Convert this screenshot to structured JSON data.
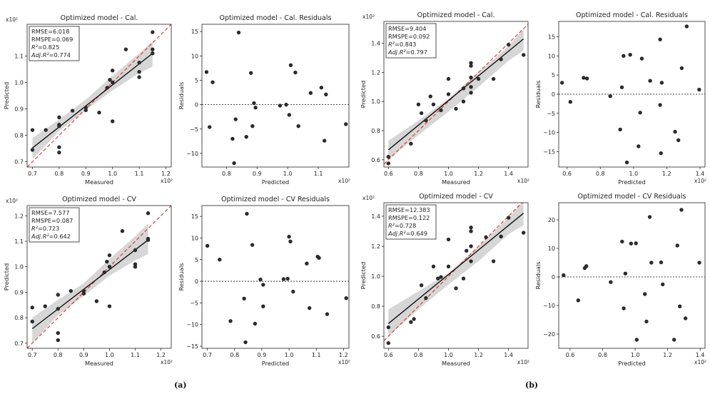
{
  "panel_labels": [
    "(a)",
    "(b)"
  ],
  "chart_data": [
    {
      "id": "a-cal",
      "type": "scatter",
      "kind": "pred",
      "title": "Optimized model - Cal.",
      "xlabel": "Measured",
      "ylabel": "Predicted",
      "x_exponent": "x10²",
      "y_exponent": "x10²",
      "xlim": [
        0.68,
        1.22
      ],
      "ylim": [
        0.68,
        1.22
      ],
      "xticks": [
        0.7,
        0.8,
        0.9,
        1.0,
        1.1,
        1.2
      ],
      "xticklabels": [
        "0.7",
        "0.8",
        "0.9",
        "1.0",
        "1.1",
        "1.2"
      ],
      "yticks": [
        0.7,
        0.8,
        0.9,
        1.0,
        1.1
      ],
      "yticklabels": [
        "0.7",
        "0.8",
        "0.9",
        "1.0",
        "1.1"
      ],
      "stats": [
        "RMSE=6.018",
        "RMSPE=0.069",
        "R²=0.825",
        "Adj.R²=0.774"
      ],
      "fit": [
        [
          0.7,
          0.752
        ],
        [
          1.15,
          1.11
        ]
      ],
      "band": [
        [
          0.7,
          0.71,
          0.79
        ],
        [
          0.8,
          0.815,
          0.86
        ],
        [
          0.9,
          0.895,
          0.935
        ],
        [
          1.0,
          0.97,
          1.025
        ],
        [
          1.1,
          1.035,
          1.11
        ],
        [
          1.15,
          1.06,
          1.155
        ]
      ],
      "x": [
        0.7,
        0.7,
        0.75,
        0.8,
        0.8,
        0.8,
        0.8,
        0.8,
        0.85,
        0.9,
        0.9,
        0.95,
        0.98,
        0.99,
        1.0,
        1.0,
        1.0,
        1.05,
        1.1,
        1.1,
        1.1,
        1.15,
        1.15,
        1.15
      ],
      "y": [
        0.82,
        0.745,
        0.82,
        0.868,
        0.835,
        0.755,
        0.735,
        0.84,
        0.893,
        0.905,
        0.895,
        0.886,
        0.98,
        1.01,
        1.045,
        0.853,
        1.0,
        1.125,
        1.075,
        1.04,
        1.02,
        1.19,
        1.125,
        1.11
      ]
    },
    {
      "id": "a-cal-res",
      "type": "scatter",
      "kind": "res",
      "title": "Optimized model - Cal. Residuals",
      "xlabel": "Predicted",
      "ylabel": "Residuals",
      "x_exponent": "x10²",
      "xlim": [
        0.72,
        1.2
      ],
      "ylim": [
        -12.8,
        16.5
      ],
      "xticks": [
        0.8,
        0.9,
        1.0,
        1.1
      ],
      "xticklabels": [
        "0.8",
        "0.9",
        "1.0",
        "1.1"
      ],
      "yticks": [
        -10,
        -5,
        0,
        5,
        10,
        15
      ],
      "yticklabels": [
        "−10",
        "−5",
        "0",
        "5",
        "10",
        "15"
      ],
      "x": [
        0.735,
        0.745,
        0.755,
        0.82,
        0.825,
        0.83,
        0.84,
        0.865,
        0.88,
        0.885,
        0.89,
        0.895,
        0.975,
        0.995,
        1.005,
        1.01,
        1.025,
        1.035,
        1.075,
        1.11,
        1.12,
        1.125,
        1.19
      ],
      "y": [
        6.7,
        -4.6,
        4.6,
        -7,
        -12,
        -3.0,
        14.8,
        -6.6,
        6.5,
        -4.4,
        0.3,
        -0.6,
        -0.2,
        0.0,
        -2.1,
        8.1,
        6.6,
        -4.4,
        2.4,
        3.5,
        -7.4,
        2.1,
        -4.0
      ]
    },
    {
      "id": "a-cv",
      "type": "scatter",
      "kind": "pred",
      "title": "Optimized model - CV",
      "xlabel": "Measured",
      "ylabel": "Predicted",
      "x_exponent": "x10²",
      "y_exponent": "x10²",
      "xlim": [
        0.68,
        1.24
      ],
      "ylim": [
        0.68,
        1.24
      ],
      "xticks": [
        0.7,
        0.8,
        0.9,
        1.0,
        1.1,
        1.2
      ],
      "xticklabels": [
        "0.7",
        "0.8",
        "0.9",
        "1.0",
        "1.1",
        "1.2"
      ],
      "yticks": [
        0.7,
        0.8,
        0.9,
        1.0,
        1.1,
        1.2
      ],
      "yticklabels": [
        "0.7",
        "0.8",
        "0.9",
        "1.0",
        "1.1",
        "1.2"
      ],
      "stats": [
        "RMSE=7.577",
        "RMSPE=0.087",
        "R²=0.723",
        "Adj.R²=0.642"
      ],
      "fit": [
        [
          0.7,
          0.757
        ],
        [
          1.15,
          1.105
        ]
      ],
      "band": [
        [
          0.7,
          0.7,
          0.8
        ],
        [
          0.8,
          0.81,
          0.87
        ],
        [
          0.9,
          0.885,
          0.935
        ],
        [
          1.0,
          0.965,
          1.03
        ],
        [
          1.1,
          1.025,
          1.12
        ],
        [
          1.15,
          1.05,
          1.17
        ]
      ],
      "x": [
        0.7,
        0.7,
        0.75,
        0.8,
        0.8,
        0.8,
        0.8,
        0.85,
        0.9,
        0.9,
        0.95,
        0.98,
        0.99,
        1.0,
        1.0,
        1.0,
        1.05,
        1.1,
        1.1,
        1.1,
        1.15,
        1.15,
        1.15
      ],
      "y": [
        0.84,
        0.785,
        0.845,
        0.89,
        0.835,
        0.74,
        0.712,
        0.905,
        0.905,
        0.895,
        0.865,
        0.978,
        1.02,
        1.045,
        0.845,
        1.0,
        1.14,
        1.065,
        1.01,
        1.0,
        1.21,
        1.105,
        1.11
      ]
    },
    {
      "id": "a-cv-res",
      "type": "scatter",
      "kind": "res",
      "title": "Optimized model - CV Residuals",
      "xlabel": "Predicted",
      "ylabel": "Residuals",
      "x_exponent": "x10²",
      "xlim": [
        0.68,
        1.22
      ],
      "ylim": [
        -15.5,
        17.5
      ],
      "xticks": [
        0.7,
        0.8,
        0.9,
        1.0,
        1.1,
        1.2
      ],
      "xticklabels": [
        "0.7",
        "0.8",
        "0.9",
        "1.0",
        "1.1",
        "1.2"
      ],
      "yticks": [
        -15,
        -10,
        -5,
        0,
        5,
        10,
        15
      ],
      "yticklabels": [
        "−15",
        "−10",
        "−5",
        "0",
        "5",
        "10",
        "15"
      ],
      "x": [
        0.7,
        0.745,
        0.785,
        0.835,
        0.84,
        0.845,
        0.865,
        0.875,
        0.895,
        0.905,
        0.905,
        0.98,
        0.995,
        1.0,
        1.005,
        1.015,
        1.065,
        1.075,
        1.105,
        1.11,
        1.14,
        1.21
      ],
      "y": [
        8.2,
        5.0,
        -9.2,
        -4.0,
        -14.1,
        15.6,
        8.4,
        -9.8,
        0.4,
        -5.8,
        -0.8,
        0.5,
        0.6,
        10.3,
        9.2,
        -2.4,
        4.1,
        -6.2,
        5.7,
        5.4,
        -7.6,
        -3.9
      ]
    },
    {
      "id": "b-cal",
      "type": "scatter",
      "kind": "pred",
      "title": "Optimized model - Cal.",
      "xlabel": "Measured",
      "ylabel": "Predicted",
      "x_exponent": "x10²",
      "y_exponent": "x10²",
      "xlim": [
        0.57,
        1.53
      ],
      "ylim": [
        0.55,
        1.55
      ],
      "xticks": [
        0.6,
        0.8,
        1.0,
        1.2,
        1.4
      ],
      "xticklabels": [
        "0.6",
        "0.8",
        "1.0",
        "1.2",
        "1.4"
      ],
      "yticks": [
        0.6,
        0.8,
        1.0,
        1.2,
        1.4
      ],
      "yticklabels": [
        "0.6",
        "0.8",
        "1.0",
        "1.2",
        "1.4"
      ],
      "stats": [
        "RMSE=9.404",
        "RMSPE=0.092",
        "R²=0.843",
        "Adj.R²=0.797"
      ],
      "fit": [
        [
          0.6,
          0.668
        ],
        [
          1.5,
          1.43
        ]
      ],
      "band": [
        [
          0.6,
          0.6,
          0.73
        ],
        [
          0.8,
          0.77,
          0.87
        ],
        [
          1.0,
          0.93,
          1.02
        ],
        [
          1.2,
          1.1,
          1.2
        ],
        [
          1.4,
          1.28,
          1.38
        ],
        [
          1.5,
          1.35,
          1.5
        ]
      ],
      "x": [
        0.6,
        0.6,
        0.75,
        0.8,
        0.82,
        0.85,
        0.88,
        0.9,
        0.95,
        1.0,
        1.0,
        1.05,
        1.1,
        1.1,
        1.15,
        1.15,
        1.15,
        1.15,
        1.15,
        1.2,
        1.3,
        1.35,
        1.4,
        1.5
      ],
      "y": [
        0.62,
        0.575,
        0.71,
        0.98,
        0.92,
        0.87,
        1.035,
        0.98,
        0.94,
        1.05,
        1.155,
        0.95,
        1.09,
        1.0,
        1.265,
        1.245,
        1.1,
        1.06,
        1.165,
        1.155,
        1.155,
        1.29,
        1.39,
        1.32
      ]
    },
    {
      "id": "b-cal-res",
      "type": "scatter",
      "kind": "res",
      "title": "Optimized model - Cal. Residuals",
      "xlabel": "Predicted",
      "ylabel": "Residuals",
      "x_exponent": "x10²",
      "xlim": [
        0.55,
        1.43
      ],
      "ylim": [
        -19,
        19
      ],
      "xticks": [
        0.6,
        0.8,
        1.0,
        1.2,
        1.4
      ],
      "xticklabels": [
        "0.6",
        "0.8",
        "1.0",
        "1.2",
        "1.4"
      ],
      "yticks": [
        -15,
        -10,
        -5,
        0,
        5,
        10,
        15
      ],
      "yticklabels": [
        "−15",
        "−10",
        "−5",
        "0",
        "5",
        "10",
        "15"
      ],
      "x": [
        0.57,
        0.62,
        0.7,
        0.72,
        0.86,
        0.92,
        0.93,
        0.94,
        0.96,
        0.98,
        1.03,
        1.04,
        1.05,
        1.1,
        1.16,
        1.16,
        1.165,
        1.17,
        1.25,
        1.27,
        1.29,
        1.32,
        1.395
      ],
      "y": [
        3.0,
        -2.0,
        4.3,
        4.1,
        -0.5,
        -9.2,
        1.8,
        10.0,
        -17.8,
        10.3,
        -13.6,
        -4.8,
        9.3,
        3.5,
        14.3,
        -2.8,
        -15.4,
        3.0,
        -9.8,
        -12.0,
        6.8,
        17.7,
        1.2
      ]
    },
    {
      "id": "b-cv",
      "type": "scatter",
      "kind": "pred",
      "title": "Optimized model - CV",
      "xlabel": "Measured",
      "ylabel": "Predicted",
      "x_exponent": "x10²",
      "y_exponent": "x10²",
      "xlim": [
        0.57,
        1.53
      ],
      "ylim": [
        0.52,
        1.49
      ],
      "xticks": [
        0.6,
        0.8,
        1.0,
        1.2,
        1.4
      ],
      "xticklabels": [
        "0.6",
        "0.8",
        "1.0",
        "1.2",
        "1.4"
      ],
      "yticks": [
        0.6,
        0.8,
        1.0,
        1.2,
        1.4
      ],
      "yticklabels": [
        "0.6",
        "0.8",
        "1.0",
        "1.2",
        "1.4"
      ],
      "stats": [
        "RMSE=12.383",
        "RMSPE=0.122",
        "R²=0.728",
        "Adj.R²=0.649"
      ],
      "fit": [
        [
          0.6,
          0.685
        ],
        [
          1.5,
          1.42
        ]
      ],
      "band": [
        [
          0.6,
          0.6,
          0.78
        ],
        [
          0.8,
          0.78,
          0.9
        ],
        [
          1.0,
          0.945,
          1.02
        ],
        [
          1.2,
          1.1,
          1.2
        ],
        [
          1.4,
          1.28,
          1.39
        ],
        [
          1.5,
          1.34,
          1.5
        ]
      ],
      "x": [
        0.6,
        0.6,
        0.75,
        0.77,
        0.82,
        0.85,
        0.9,
        0.93,
        0.95,
        1.0,
        1.0,
        1.05,
        1.1,
        1.12,
        1.15,
        1.15,
        1.15,
        1.15,
        1.25,
        1.3,
        1.35,
        1.4,
        1.5
      ],
      "y": [
        0.66,
        0.555,
        0.695,
        0.715,
        0.94,
        0.855,
        1.065,
        0.985,
        0.995,
        1.245,
        1.065,
        0.92,
        0.985,
        1.17,
        1.325,
        1.3,
        1.2,
        1.1,
        1.26,
        1.1,
        1.265,
        1.39,
        1.29
      ]
    },
    {
      "id": "b-cv-res",
      "type": "scatter",
      "kind": "res",
      "title": "Optimized model - CV Residuals",
      "xlabel": "Predicted",
      "ylabel": "Residuals",
      "x_exponent": "x10²",
      "xlim": [
        0.53,
        1.43
      ],
      "ylim": [
        -25,
        26
      ],
      "xticks": [
        0.6,
        0.8,
        1.0,
        1.2,
        1.4
      ],
      "xticklabels": [
        "0.6",
        "0.8",
        "1.0",
        "1.2",
        "1.4"
      ],
      "yticks": [
        -20,
        -10,
        0,
        10,
        20
      ],
      "yticklabels": [
        "−20",
        "−10",
        "0",
        "10",
        "20"
      ],
      "x": [
        0.56,
        0.65,
        0.69,
        0.7,
        0.85,
        0.92,
        0.93,
        0.94,
        0.975,
        1.005,
        1.01,
        1.06,
        1.07,
        1.09,
        1.1,
        1.16,
        1.17,
        1.24,
        1.26,
        1.275,
        1.285,
        1.31,
        1.395
      ],
      "y": [
        0.6,
        -8.2,
        3.1,
        3.8,
        -1.8,
        12.4,
        -11.0,
        1.2,
        11.7,
        11.8,
        -22.0,
        -6.0,
        -15.6,
        21.0,
        5.0,
        5.1,
        -2.6,
        -22.0,
        11.0,
        -10.3,
        23.5,
        -14.5,
        5.0
      ]
    }
  ]
}
